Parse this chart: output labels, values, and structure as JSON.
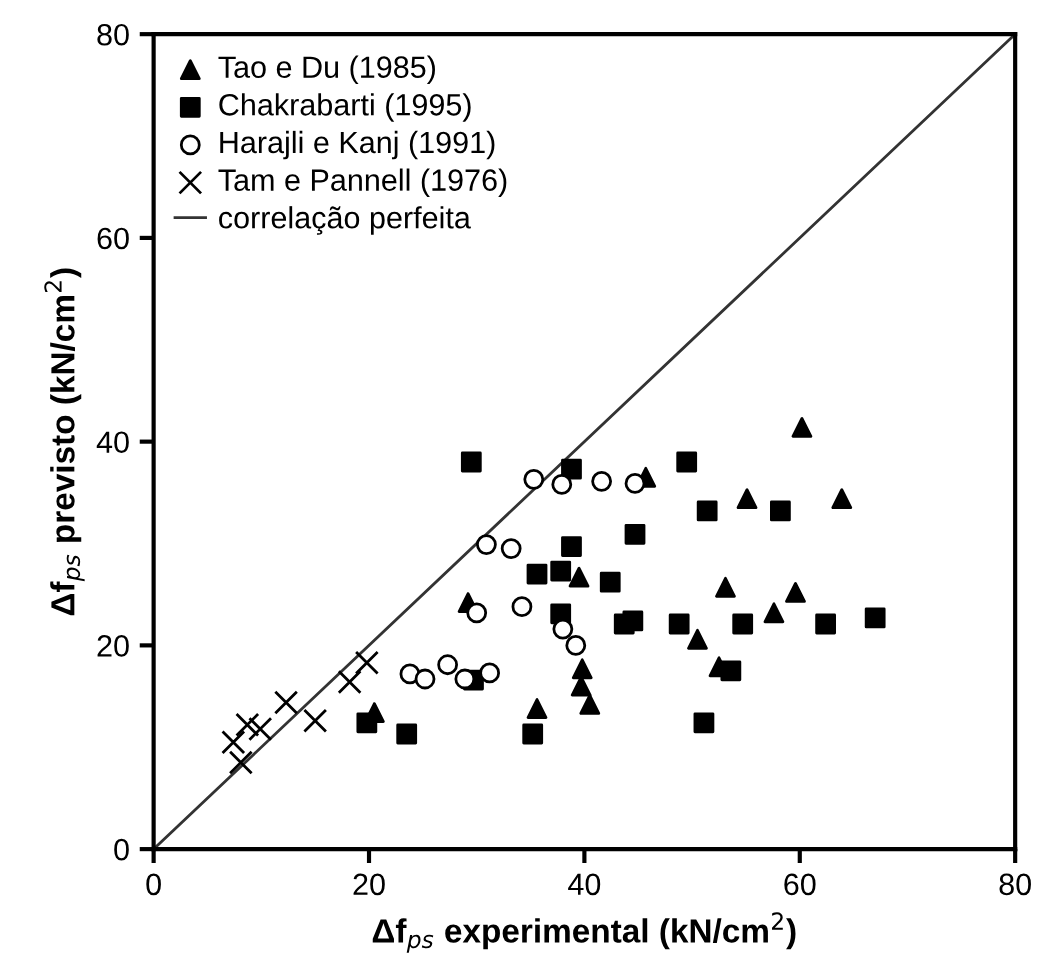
{
  "chart_data": {
    "type": "scatter",
    "xlabel": "Δf$_{ps}$ experimental (kN/cm$^{2}$)",
    "ylabel": "Δf$_{ps}$ previsto (kN/cm$^{2}$)",
    "xlim": [
      0,
      80
    ],
    "ylim": [
      0,
      80
    ],
    "xticks": [
      0,
      20,
      40,
      60,
      80
    ],
    "yticks": [
      0,
      20,
      40,
      60,
      80
    ],
    "grid": false,
    "legend": "top left",
    "series": [
      {
        "name": "Tao e Du (1985)",
        "color": "#000000",
        "marker": "triangle",
        "x": [
          29.2,
          20.5,
          35.6,
          39.5,
          39.8,
          39.7,
          40.5,
          45.7,
          60.2,
          55.1,
          63.9,
          53.1,
          59.6,
          57.6,
          50.5,
          52.5
        ],
        "values": [
          24.2,
          13.4,
          13.8,
          26.7,
          17.7,
          16.0,
          14.2,
          36.5,
          41.4,
          34.4,
          34.4,
          25.7,
          25.2,
          23.2,
          20.6,
          17.9
        ]
      },
      {
        "name": "Chakrabarti (1995)",
        "color": "#000000",
        "marker": "square",
        "x": [
          29.5,
          19.8,
          23.5,
          35.2,
          29.7,
          35.6,
          37.8,
          37.8,
          38.8,
          38.8,
          42.4,
          44.7,
          43.7,
          44.5,
          49.5,
          51.4,
          58.2,
          48.8,
          54.7,
          62.4,
          67.0,
          53.6,
          51.1
        ],
        "values": [
          38.0,
          12.4,
          11.3,
          11.3,
          16.6,
          27.0,
          27.3,
          23.1,
          37.3,
          29.7,
          26.2,
          30.9,
          22.1,
          22.4,
          38.0,
          33.2,
          33.2,
          22.1,
          22.1,
          22.1,
          22.7,
          17.5,
          12.4
        ]
      },
      {
        "name": "Harajli e Kanj (1991)",
        "color": "#000000",
        "marker": "circle",
        "x": [
          35.3,
          37.9,
          41.6,
          44.7,
          30.9,
          33.2,
          30.0,
          34.2,
          38.0,
          39.2,
          23.8,
          25.2,
          27.3,
          28.9,
          31.2
        ],
        "values": [
          36.3,
          35.8,
          36.1,
          35.9,
          29.9,
          29.5,
          23.2,
          23.8,
          21.6,
          20.0,
          17.2,
          16.7,
          18.1,
          16.7,
          17.3
        ]
      },
      {
        "name": "Tam e Pannell (1976)",
        "color": "#000000",
        "marker": "cross",
        "x": [
          19.8,
          18.2,
          15.0,
          12.3,
          9.9,
          8.7,
          7.4,
          8.1
        ],
        "values": [
          18.3,
          16.4,
          12.6,
          14.4,
          11.8,
          12.2,
          10.5,
          8.5
        ]
      },
      {
        "name": "correlação perfeita",
        "type": "line",
        "color": "#333333",
        "marker": "none",
        "line_style": "solid",
        "x": [
          0,
          80
        ],
        "values": [
          0,
          80
        ]
      }
    ]
  }
}
